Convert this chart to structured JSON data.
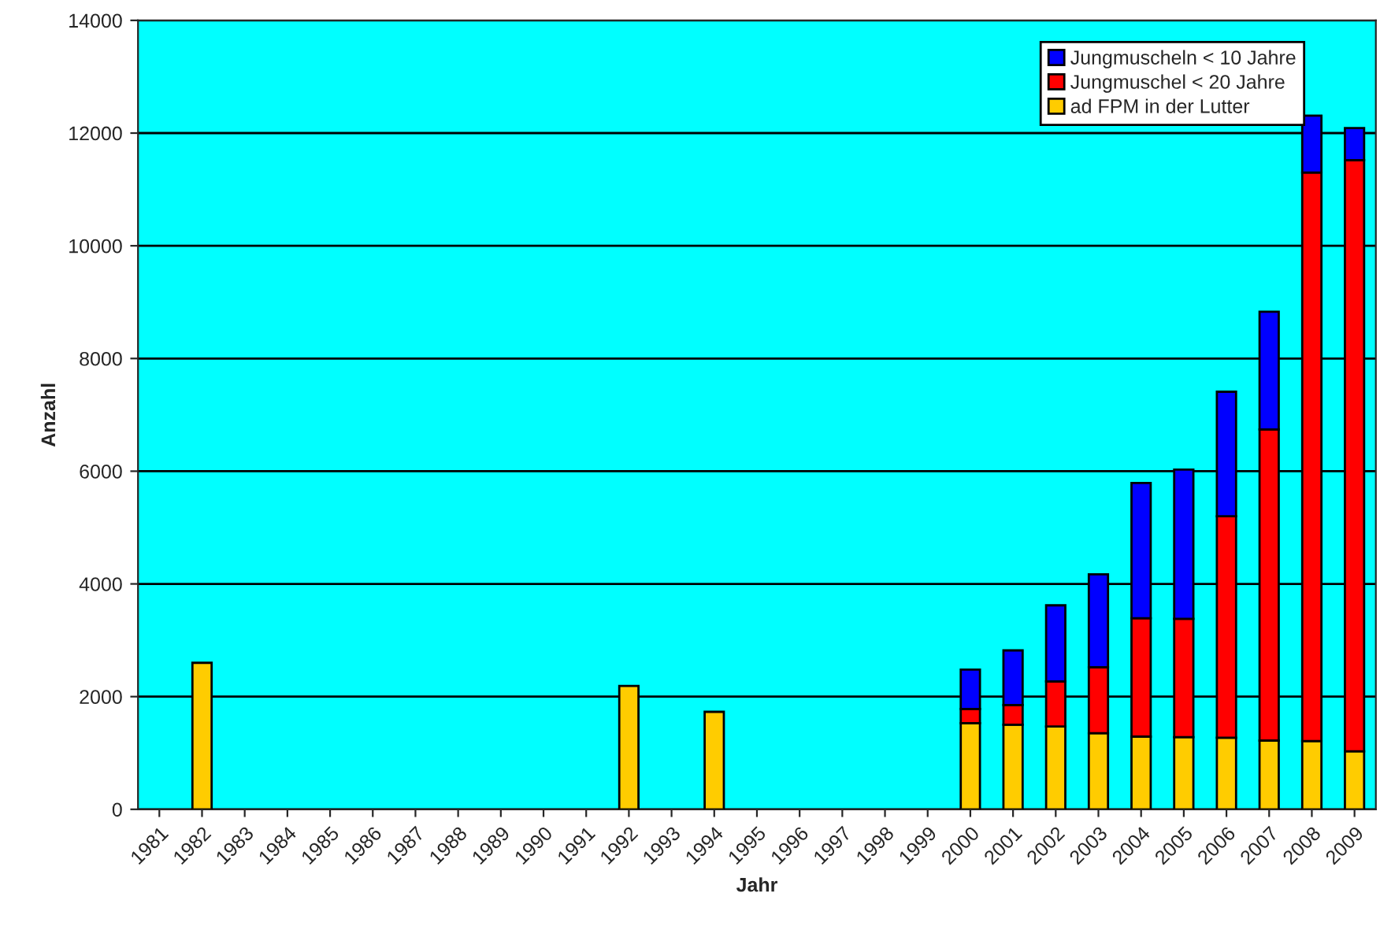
{
  "chart_data": {
    "type": "bar",
    "xlabel": "Jahr",
    "ylabel": "Anzahl",
    "stacked": true,
    "categories": [
      "1981",
      "1982",
      "1983",
      "1984",
      "1985",
      "1986",
      "1987",
      "1988",
      "1989",
      "1990",
      "1991",
      "1992",
      "1993",
      "1994",
      "1995",
      "1996",
      "1997",
      "1998",
      "1999",
      "2000",
      "2001",
      "2002",
      "2003",
      "2004",
      "2005",
      "2006",
      "2007",
      "2008",
      "2009"
    ],
    "series": [
      {
        "name": "ad FPM in der Lutter",
        "color": "#ffcc00",
        "values": [
          null,
          2600,
          null,
          null,
          null,
          null,
          null,
          null,
          null,
          null,
          null,
          2190,
          null,
          1730,
          null,
          null,
          null,
          null,
          null,
          1530,
          1500,
          1470,
          1350,
          1290,
          1280,
          1270,
          1220,
          1210,
          1030
        ]
      },
      {
        "name": "Jungmuschel < 20 Jahre",
        "color": "#ff0000",
        "values": [
          null,
          null,
          null,
          null,
          null,
          null,
          null,
          null,
          null,
          null,
          null,
          null,
          null,
          null,
          null,
          null,
          null,
          null,
          null,
          250,
          350,
          800,
          1170,
          2100,
          2100,
          3930,
          5520,
          10090,
          10490
        ]
      },
      {
        "name": "Jungmuscheln < 10 Jahre",
        "color": "#0000ff",
        "values": [
          null,
          null,
          null,
          null,
          null,
          null,
          null,
          null,
          null,
          null,
          null,
          null,
          null,
          null,
          null,
          null,
          null,
          null,
          null,
          700,
          970,
          1350,
          1650,
          2400,
          2650,
          2210,
          2090,
          1010,
          570
        ]
      }
    ],
    "ylim": [
      0,
      14000
    ],
    "yticks": [
      0,
      2000,
      4000,
      6000,
      8000,
      10000,
      12000,
      14000
    ],
    "grid": "y",
    "legend": "top right"
  }
}
